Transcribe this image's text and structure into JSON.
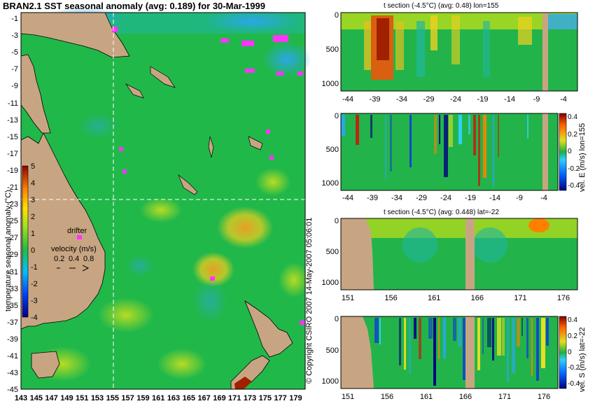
{
  "chart_data": [
    {
      "type": "heatmap",
      "title": "BRAN2.1 SST seasonal anomaly (avg: 0.189) for 30-Mar-1999",
      "x_ticks": [
        "143",
        "145",
        "147",
        "149",
        "151",
        "153",
        "155",
        "157",
        "159",
        "161",
        "163",
        "165",
        "167",
        "169",
        "171",
        "173",
        "175",
        "177",
        "179"
      ],
      "y_ticks": [
        "-1",
        "-3",
        "-5",
        "-7",
        "-9",
        "-11",
        "-13",
        "-15",
        "-17",
        "-19",
        "-21",
        "-23",
        "-25",
        "-27",
        "-29",
        "-31",
        "-33",
        "-35",
        "-37",
        "-39",
        "-41",
        "-43",
        "-45"
      ],
      "xlim": [
        143,
        180
      ],
      "ylim": [
        -45,
        0
      ],
      "section_lines": {
        "lon": 155,
        "lat": -22
      },
      "colorbar": {
        "label": "temperature seasonal anomaly (°C)",
        "ticks": [
          "5",
          "4",
          "3",
          "2",
          "1",
          "0",
          "-1",
          "-2",
          "-3",
          "-4"
        ],
        "range": [
          -4,
          5
        ]
      },
      "legend": {
        "drifter": "drifter",
        "velocity_label": "velocity (m/s)",
        "velocity_values": [
          "0.2",
          "0.4",
          "0.8"
        ]
      }
    },
    {
      "type": "heatmap",
      "title": "t section (-4.5°C) (avg: 0.48) lon=155",
      "x_ticks": [
        "-44",
        "-39",
        "-34",
        "-29",
        "-24",
        "-19",
        "-14",
        "-9",
        "-4"
      ],
      "y_ticks": [
        "0",
        "500",
        "1000"
      ]
    },
    {
      "type": "heatmap",
      "title": "",
      "x_ticks": [
        "-44",
        "-39",
        "-34",
        "-29",
        "-24",
        "-19",
        "-14",
        "-9",
        "-4"
      ],
      "y_ticks": [
        "0",
        "500",
        "1000"
      ],
      "colorbar": {
        "label": "vel. E (m/s) lon=155",
        "ticks": [
          "0.4",
          "0.2",
          "0",
          "-0.2",
          "-0.4"
        ],
        "range": [
          -0.4,
          0.4
        ]
      }
    },
    {
      "type": "heatmap",
      "title": "t section (-4.5°C) (avg: 0.448) lat=-22",
      "x_ticks": [
        "151",
        "156",
        "161",
        "166",
        "171",
        "176"
      ],
      "y_ticks": [
        "0",
        "500",
        "1000"
      ]
    },
    {
      "type": "heatmap",
      "title": "",
      "x_ticks": [
        "151",
        "156",
        "161",
        "166",
        "171",
        "176"
      ],
      "y_ticks": [
        "0",
        "500",
        "1000"
      ],
      "colorbar": {
        "label": "vel. S (m/s) lat=-22",
        "ticks": [
          "0.4",
          "0.2",
          "0",
          "-0.2",
          "-0.4"
        ],
        "range": [
          -0.4,
          0.4
        ]
      }
    }
  ],
  "watermark": "© Copyright CSIRO 2007  14-May-2007 05:06:01",
  "colors": {
    "land": "#c8a582",
    "background": "#ffffff",
    "ocean_base": "#21b84a",
    "warm": "#f0d020",
    "hot": "#c83010",
    "cool": "#2aa6ee",
    "drifter": "#ff33ff"
  }
}
